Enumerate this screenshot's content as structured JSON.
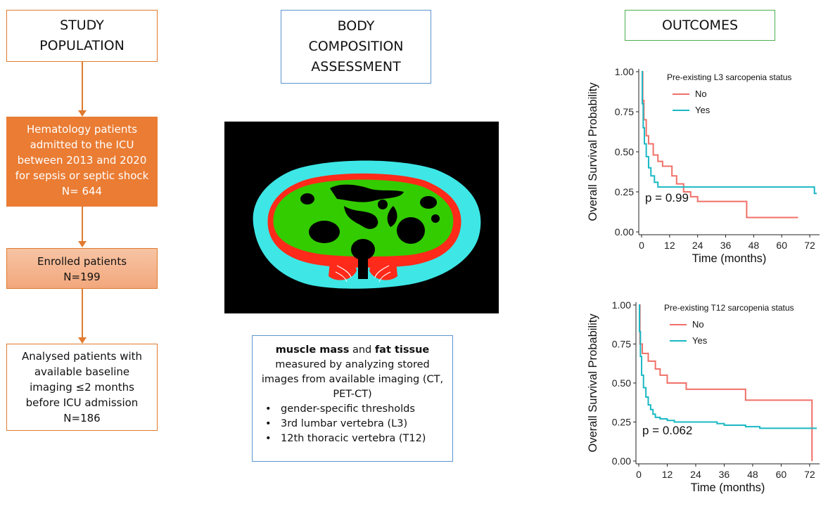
{
  "study_population": {
    "title_line1": "STUDY",
    "title_line2": "POPULATION",
    "box1": [
      "Hematology patients",
      "admitted to the ICU",
      "between 2013 and 2020",
      "for sepsis or septic shock",
      "N= 644"
    ],
    "box2": [
      "Enrolled patients",
      "N=199"
    ],
    "box3": [
      "Analysed patients with",
      "available baseline",
      "imaging ≤2 months",
      "before ICU admission",
      "N=186"
    ]
  },
  "body_composition": {
    "title_line1": "BODY",
    "title_line2": "COMPOSITION",
    "title_line3": "ASSESSMENT",
    "desc_bold1": "muscle mass",
    "desc_and": " and ",
    "desc_bold2": "fat tissue",
    "desc_line2": "measured by analyzing stored",
    "desc_line3": "images from available imaging (CT,",
    "desc_line4": "PET-CT)",
    "bullets": [
      "gender-specific thresholds",
      "3rd lumbar vertebra (L3)",
      "12th thoracic vertebra (T12)"
    ],
    "colors": {
      "muscle": "#ff2a1a",
      "visceral_fat": "#33cc00",
      "subcutaneous_fat": "#3ee6e6",
      "background": "#000000"
    }
  },
  "outcomes": {
    "title": "OUTCOMES"
  },
  "chart_data": [
    {
      "type": "line",
      "ylabel": "Overall Survival Probability",
      "xlabel": "Time (months)",
      "xticks": [
        0,
        12,
        24,
        36,
        48,
        60,
        72
      ],
      "yticks": [
        "0.00",
        "0.25",
        "0.50",
        "0.75",
        "1.00"
      ],
      "xlim": [
        0,
        75
      ],
      "ylim": [
        0,
        1
      ],
      "legend_title": "Pre-existing L3 sarcopenia status",
      "annotation": "p = 0.99",
      "series": [
        {
          "name": "No",
          "color": "#f07068",
          "steps": [
            [
              0,
              1
            ],
            [
              0.5,
              0.82
            ],
            [
              1,
              0.7
            ],
            [
              2,
              0.6
            ],
            [
              3,
              0.55
            ],
            [
              5,
              0.48
            ],
            [
              7,
              0.44
            ],
            [
              9,
              0.41
            ],
            [
              13,
              0.35
            ],
            [
              15,
              0.3
            ],
            [
              18,
              0.25
            ],
            [
              21,
              0.22
            ],
            [
              24,
              0.19
            ],
            [
              45,
              0.09
            ],
            [
              67,
              0.09
            ]
          ]
        },
        {
          "name": "Yes",
          "color": "#1ab8c4",
          "steps": [
            [
              0,
              1
            ],
            [
              0.3,
              0.8
            ],
            [
              0.7,
              0.65
            ],
            [
              1.2,
              0.55
            ],
            [
              2,
              0.47
            ],
            [
              3,
              0.4
            ],
            [
              4,
              0.35
            ],
            [
              5.5,
              0.31
            ],
            [
              7,
              0.28
            ],
            [
              74,
              0.28
            ],
            [
              74,
              0.24
            ],
            [
              75,
              0.24
            ]
          ]
        }
      ]
    },
    {
      "type": "line",
      "ylabel": "Overall Survival Probability",
      "xlabel": "Time (months)",
      "xticks": [
        0,
        12,
        24,
        36,
        48,
        60,
        72
      ],
      "yticks": [
        "0.00",
        "0.25",
        "0.50",
        "0.75",
        "1.00"
      ],
      "xlim": [
        0,
        75
      ],
      "ylim": [
        0,
        1
      ],
      "legend_title": "Pre-existing T12 sarcopenia status",
      "annotation": "p = 0.062",
      "series": [
        {
          "name": "No",
          "color": "#f07068",
          "steps": [
            [
              0,
              1
            ],
            [
              0.5,
              0.75
            ],
            [
              1.5,
              0.69
            ],
            [
              4,
              0.64
            ],
            [
              7,
              0.59
            ],
            [
              9,
              0.55
            ],
            [
              12,
              0.5
            ],
            [
              20,
              0.46
            ],
            [
              45,
              0.39
            ],
            [
              72,
              0.39
            ],
            [
              73,
              0.0
            ]
          ]
        },
        {
          "name": "Yes",
          "color": "#1ab8c4",
          "steps": [
            [
              0,
              1
            ],
            [
              0.3,
              0.83
            ],
            [
              0.7,
              0.67
            ],
            [
              1.2,
              0.55
            ],
            [
              2,
              0.47
            ],
            [
              3,
              0.41
            ],
            [
              4,
              0.36
            ],
            [
              5,
              0.33
            ],
            [
              6,
              0.3
            ],
            [
              7,
              0.28
            ],
            [
              9,
              0.27
            ],
            [
              12,
              0.26
            ],
            [
              15,
              0.25
            ],
            [
              33,
              0.24
            ],
            [
              36,
              0.23
            ],
            [
              45,
              0.22
            ],
            [
              51,
              0.21
            ],
            [
              75,
              0.21
            ]
          ]
        }
      ]
    }
  ]
}
